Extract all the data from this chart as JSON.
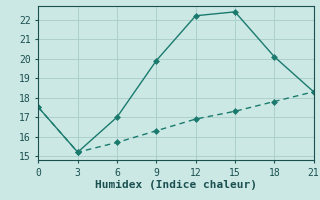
{
  "xlabel": "Humidex (Indice chaleur)",
  "line1_x": [
    0,
    3,
    6,
    9,
    12,
    15,
    18,
    21
  ],
  "line1_y": [
    17.5,
    15.2,
    17.0,
    19.9,
    22.2,
    22.4,
    20.1,
    18.3
  ],
  "line2_x": [
    0,
    3,
    6,
    9,
    12,
    15,
    18,
    21
  ],
  "line2_y": [
    17.5,
    15.2,
    15.7,
    16.3,
    16.9,
    17.3,
    17.8,
    18.3
  ],
  "line_color": "#1a7a6e",
  "bg_color": "#cce8e4",
  "grid_color": "#aed0cc",
  "xlim": [
    0,
    21
  ],
  "ylim": [
    14.8,
    22.7
  ],
  "xticks": [
    0,
    3,
    6,
    9,
    12,
    15,
    18,
    21
  ],
  "yticks": [
    15,
    16,
    17,
    18,
    19,
    20,
    21,
    22
  ],
  "markersize": 3,
  "linewidth": 1.0,
  "font_color": "#1a5050",
  "xlabel_fontsize": 8,
  "tick_fontsize": 7
}
